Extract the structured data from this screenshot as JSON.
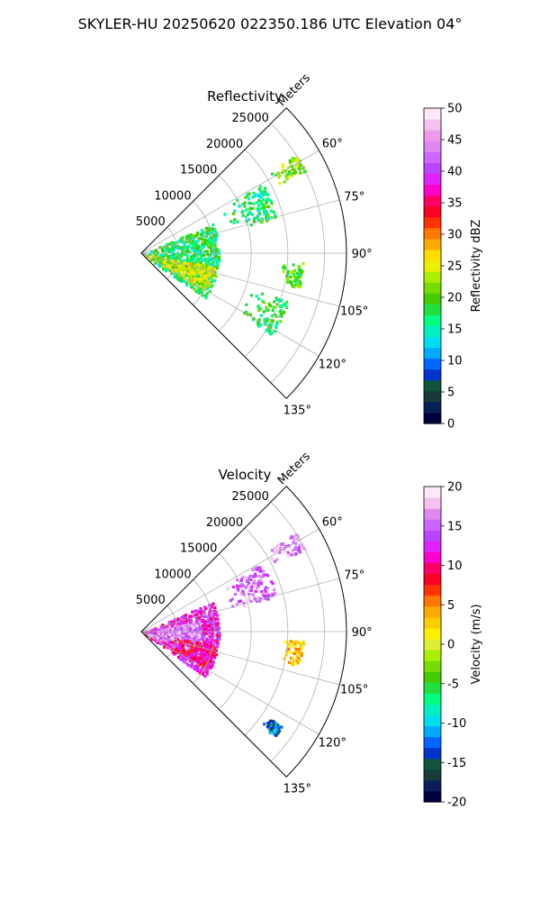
{
  "figure_title": "SKYLER-HU  20250620  022350.186 UTC Elevation 04°",
  "colors": {
    "grid": "#b0b0b0",
    "axis": "#000000",
    "reflectivity_scale": [
      "#00003c",
      "#0a1e5a",
      "#173a3a",
      "#10553a",
      "#0033cc",
      "#0066ff",
      "#00aaff",
      "#00ddee",
      "#00f0c0",
      "#00ff80",
      "#20e040",
      "#44cc00",
      "#77dd00",
      "#aaee00",
      "#eeee00",
      "#ffdd00",
      "#ffaa00",
      "#ff7700",
      "#ff3300",
      "#ff0022",
      "#ff0066",
      "#ff00cc",
      "#dd22ff",
      "#bb44ff",
      "#cc66ff",
      "#dd88ee",
      "#ee99ee",
      "#f6c0f0",
      "#fde8fa"
    ],
    "velocity_scale": [
      "#00003c",
      "#0a1e5a",
      "#173a3a",
      "#10553a",
      "#0033cc",
      "#0066ff",
      "#00aaff",
      "#00ddee",
      "#00f0c0",
      "#00ff80",
      "#20e040",
      "#44cc00",
      "#77dd00",
      "#aaee00",
      "#ddee33",
      "#ffee00",
      "#ffcc00",
      "#ffaa00",
      "#ff7700",
      "#ff3300",
      "#ff0022",
      "#ff0066",
      "#ff00cc",
      "#dd22ff",
      "#bb44ff",
      "#cc66ff",
      "#dd88ee",
      "#f6c0f0",
      "#fde8fa"
    ]
  },
  "chart_data": [
    {
      "type": "heatmap",
      "projection": "polar-sector",
      "title": "Reflectivity",
      "radial_label": "Meters",
      "radial_ticks": [
        5000,
        10000,
        15000,
        20000,
        25000
      ],
      "rlim": [
        0,
        28000
      ],
      "theta_range_deg": [
        45,
        135
      ],
      "theta_ticks": [
        60,
        75,
        90,
        105,
        120,
        135
      ],
      "theta_tick_labels": [
        "60°",
        "75°",
        "90°",
        "105°",
        "120°",
        "135°"
      ],
      "grid": true,
      "colorbar": {
        "label": "Reflectivity dBZ",
        "range": [
          0,
          50
        ],
        "ticks": [
          0,
          5,
          10,
          15,
          20,
          25,
          30,
          35,
          40,
          45,
          50
        ]
      },
      "echo_regions": [
        {
          "theta_range": [
            57,
            63
          ],
          "r_range": [
            20000,
            25000
          ],
          "value_dbz": 22
        },
        {
          "theta_range": [
            60,
            75
          ],
          "r_range": [
            12000,
            19000
          ],
          "value_dbz": 17
        },
        {
          "theta_range": [
            67,
            125
          ],
          "r_range": [
            0,
            10500
          ],
          "value_dbz": 17
        },
        {
          "theta_range": [
            100,
            120
          ],
          "r_range": [
            0,
            10000
          ],
          "value_dbz": 24
        },
        {
          "theta_range": [
            93,
            102
          ],
          "r_range": [
            19000,
            22000
          ],
          "value_dbz": 20
        },
        {
          "theta_range": [
            108,
            122
          ],
          "r_range": [
            15000,
            21000
          ],
          "value_dbz": 18
        }
      ]
    },
    {
      "type": "heatmap",
      "projection": "polar-sector",
      "title": "Velocity",
      "radial_label": "Meters",
      "radial_ticks": [
        5000,
        10000,
        15000,
        20000,
        25000
      ],
      "rlim": [
        0,
        28000
      ],
      "theta_range_deg": [
        45,
        135
      ],
      "theta_ticks": [
        60,
        75,
        90,
        105,
        120,
        135
      ],
      "theta_tick_labels": [
        "60°",
        "75°",
        "90°",
        "105°",
        "120°",
        "135°"
      ],
      "grid": true,
      "colorbar": {
        "label": "Velocity (m/s)",
        "range": [
          -20,
          20
        ],
        "ticks": [
          -20,
          -15,
          -10,
          -5,
          0,
          5,
          10,
          15,
          20
        ]
      },
      "echo_regions": [
        {
          "theta_range": [
            57,
            63
          ],
          "r_range": [
            20000,
            25000
          ],
          "value_ms": 16
        },
        {
          "theta_range": [
            60,
            75
          ],
          "r_range": [
            12000,
            19000
          ],
          "value_ms": 15
        },
        {
          "theta_range": [
            67,
            125
          ],
          "r_range": [
            0,
            10500
          ],
          "value_ms": 12
        },
        {
          "theta_range": [
            80,
            110
          ],
          "r_range": [
            0,
            8000
          ],
          "value_ms": 16
        },
        {
          "theta_range": [
            100,
            120
          ],
          "r_range": [
            3000,
            10000
          ],
          "value_ms": 10
        },
        {
          "theta_range": [
            93,
            102
          ],
          "r_range": [
            19000,
            22000
          ],
          "value_ms": 3
        },
        {
          "theta_range": [
            124,
            128
          ],
          "r_range": [
            20500,
            23000
          ],
          "value_ms": -13
        }
      ]
    }
  ]
}
